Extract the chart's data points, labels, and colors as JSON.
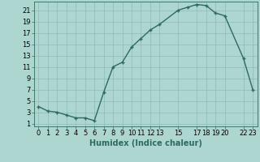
{
  "x": [
    0,
    1,
    2,
    3,
    4,
    5,
    6,
    7,
    8,
    9,
    10,
    11,
    12,
    13,
    15,
    16,
    17,
    18,
    19,
    20,
    22,
    23
  ],
  "y": [
    4,
    3.2,
    3,
    2.5,
    2,
    2,
    1.5,
    6.5,
    11,
    11.8,
    14.5,
    16,
    17.5,
    18.5,
    21,
    21.5,
    22,
    21.8,
    20.5,
    20,
    12.5,
    7
  ],
  "line_color": "#2d6b5e",
  "marker": "+",
  "bg_color": "#aed6d0",
  "grid_color": "#8bbdb8",
  "xlabel": "Humidex (Indice chaleur)",
  "xlim": [
    -0.5,
    23.5
  ],
  "ylim": [
    0.5,
    22.5
  ],
  "xticks": [
    0,
    1,
    2,
    3,
    4,
    5,
    6,
    7,
    8,
    9,
    10,
    11,
    12,
    13,
    15,
    17,
    18,
    19,
    20,
    22,
    23
  ],
  "yticks": [
    1,
    3,
    5,
    7,
    9,
    11,
    13,
    15,
    17,
    19,
    21
  ],
  "tick_fontsize": 6,
  "label_fontsize": 7,
  "linewidth": 1.0,
  "markersize": 3.5,
  "markeredgewidth": 1.0
}
